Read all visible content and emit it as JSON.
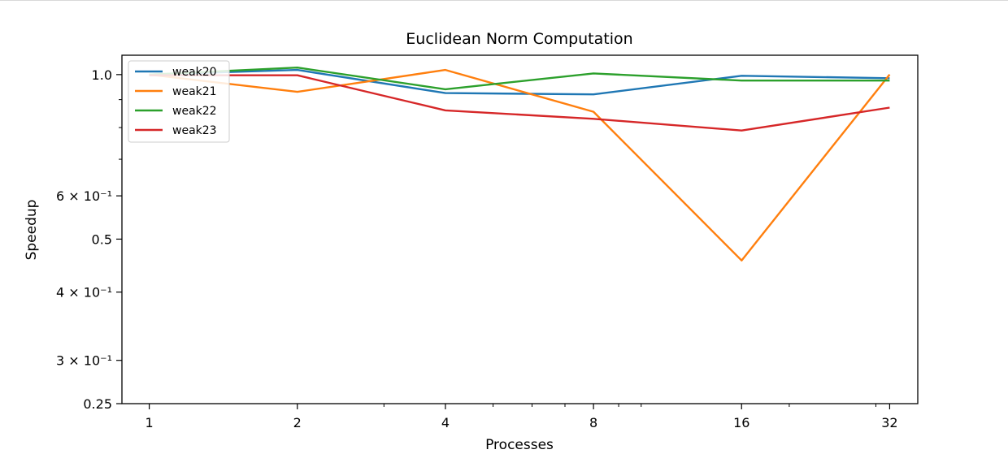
{
  "chart_data": {
    "type": "line",
    "title": "Euclidean Norm Computation",
    "xlabel": "Processes",
    "ylabel": "Speedup",
    "xscale": "log2",
    "yscale": "log",
    "x": [
      1,
      2,
      4,
      8,
      16,
      32
    ],
    "x_tick_labels": [
      "1",
      "2",
      "4",
      "8",
      "16",
      "32"
    ],
    "xlim": [
      0.88,
      36.5
    ],
    "ylim": [
      0.25,
      1.085
    ],
    "y_tick_values": [
      0.25,
      0.3,
      0.4,
      0.5,
      0.6,
      1.0
    ],
    "y_tick_labels": [
      "0.25",
      "3 × 10⁻¹",
      "4 × 10⁻¹",
      "0.5",
      "6 × 10⁻¹",
      "1.0"
    ],
    "y_minor_ticks": [
      0.7,
      0.8,
      0.9
    ],
    "grid": false,
    "legend_position": "top-left",
    "series": [
      {
        "name": "weak20",
        "color": "#1f77b4",
        "values": [
          1.0,
          1.02,
          0.925,
          0.92,
          0.995,
          0.985
        ]
      },
      {
        "name": "weak21",
        "color": "#ff7f0e",
        "values": [
          1.0,
          0.93,
          1.02,
          0.855,
          0.457,
          1.0
        ]
      },
      {
        "name": "weak22",
        "color": "#2ca02c",
        "values": [
          1.0,
          1.03,
          0.94,
          1.005,
          0.975,
          0.975
        ]
      },
      {
        "name": "weak23",
        "color": "#d62728",
        "values": [
          0.997,
          0.997,
          0.86,
          0.83,
          0.79,
          0.87
        ]
      }
    ]
  }
}
